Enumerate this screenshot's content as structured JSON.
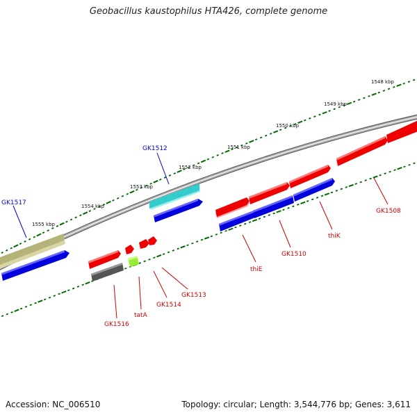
{
  "header": {
    "title": "Geobacillus kaustophilus HTA426, complete genome"
  },
  "footer": {
    "accession": "Accession: NC_006510",
    "summary": "Topology: circular; Length: 3,544,776 bp; Genes: 3,611"
  },
  "kbp_labels": [
    "1548 kbp",
    "1549 kbp",
    "1550 kbp",
    "1551 kbp",
    "1552 kbp",
    "1553 kbp",
    "1554 kbp",
    "1555 kbp"
  ],
  "genes": [
    {
      "name": "GK1517",
      "color": "#b5b27a",
      "label_color": "#0000cc"
    },
    {
      "name": "GK1512",
      "color": "#33cccc",
      "label_color": "#0000cc"
    },
    {
      "name": "GK1508",
      "color": "#ff0000",
      "label_color": "#cc0000"
    },
    {
      "name": "thiK",
      "color": "#0000ff",
      "label_color": "#cc0000"
    },
    {
      "name": "GK1510",
      "color": "#0000ff",
      "label_color": "#cc0000"
    },
    {
      "name": "thiE",
      "color": "#0000ff",
      "label_color": "#cc0000"
    },
    {
      "name": "GK1513",
      "color": "#ff0000",
      "label_color": "#cc0000"
    },
    {
      "name": "GK1514",
      "color": "#ff0000",
      "label_color": "#cc0000"
    },
    {
      "name": "tatA",
      "color": "#99ee33",
      "label_color": "#cc0000"
    },
    {
      "name": "GK1516",
      "color": "#555555",
      "label_color": "#cc0000"
    }
  ],
  "colors": {
    "backbone": "#888888",
    "ticks": "#006600",
    "forward_strand": "#ff0000",
    "reverse_strand": "#0000ff"
  }
}
